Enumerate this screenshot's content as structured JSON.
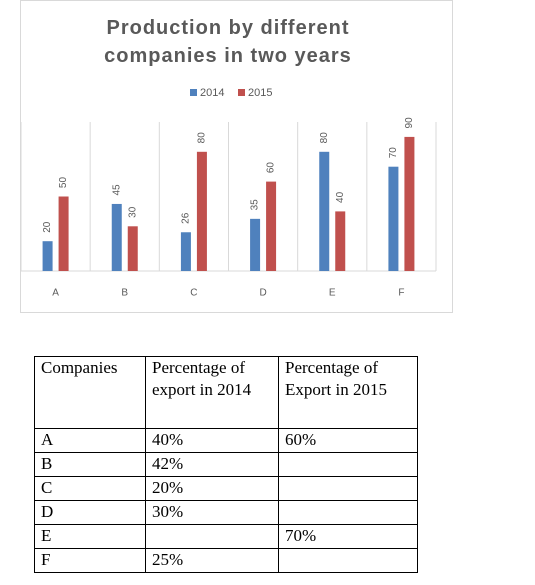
{
  "chart_data": {
    "type": "bar",
    "title": "Production by different companies in two years",
    "categories": [
      "A",
      "B",
      "C",
      "D",
      "E",
      "F"
    ],
    "series": [
      {
        "name": "2014",
        "color": "#4f81bd",
        "values": [
          20,
          45,
          26,
          35,
          80,
          70
        ]
      },
      {
        "name": "2015",
        "color": "#c0504d",
        "values": [
          50,
          30,
          80,
          60,
          40,
          90
        ]
      }
    ],
    "ylim": [
      0,
      100
    ],
    "legend": "top"
  },
  "table": {
    "header": [
      "Companies",
      "Percentage of export in 2014",
      "Percentage of Export in 2015"
    ],
    "rows": [
      [
        "A",
        "40%",
        "60%"
      ],
      [
        "B",
        "42%",
        null
      ],
      [
        "C",
        "20%",
        null
      ],
      [
        "D",
        "30%",
        null
      ],
      [
        "E",
        null,
        "70%"
      ],
      [
        "F",
        "25%",
        null
      ]
    ]
  }
}
